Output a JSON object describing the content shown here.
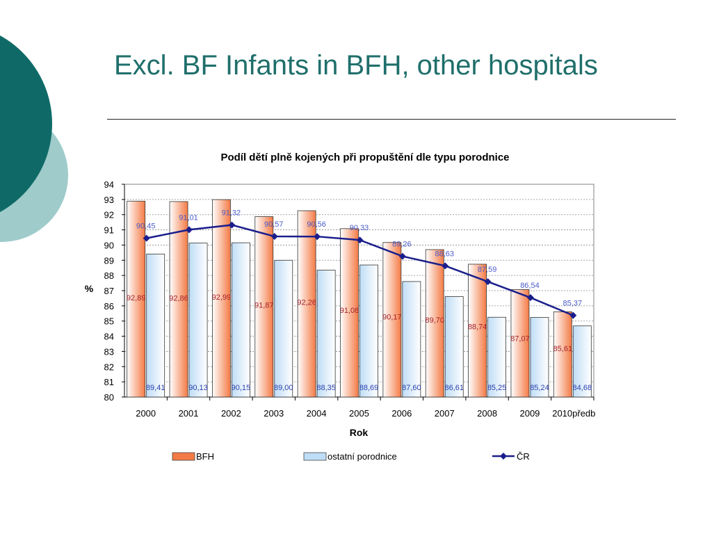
{
  "slide": {
    "title": "Excl. BF Infants in BFH, other hospitals",
    "accent_color": "#1F6F6B",
    "decor_dark": "#0F6A67",
    "decor_light": "#9FCBCB"
  },
  "chart_data": {
    "type": "bar",
    "title": "Podíl dětí plně kojených při propuštění dle typu porodnice",
    "xlabel": "Rok",
    "ylabel": "%",
    "ylim": [
      80,
      94
    ],
    "yticks": [
      80,
      81,
      82,
      83,
      84,
      85,
      86,
      87,
      88,
      89,
      90,
      91,
      92,
      93,
      94
    ],
    "grid": true,
    "legend_position": "bottom",
    "categories": [
      "2000",
      "2001",
      "2002",
      "2003",
      "2004",
      "2005",
      "2006",
      "2007",
      "2008",
      "2009",
      "2010předb"
    ],
    "series": [
      {
        "name": "BFH",
        "type": "bar",
        "color": "#F47A45",
        "values": [
          92.89,
          92.86,
          92.99,
          91.87,
          92.26,
          91.08,
          90.17,
          89.7,
          88.74,
          87.07,
          85.61
        ],
        "labels": [
          "92,89",
          "92,86",
          "92,99",
          "91,87",
          "92,26",
          "91,08",
          "90,17",
          "89,70",
          "88,74",
          "87,07",
          "85,61"
        ]
      },
      {
        "name": "ostatní porodnice",
        "type": "bar",
        "color": "#BFDDF6",
        "values": [
          89.41,
          90.13,
          90.15,
          89.0,
          88.35,
          88.69,
          87.6,
          86.61,
          85.25,
          85.24,
          84.68
        ],
        "labels": [
          "89,41",
          "90,13",
          "90,15",
          "89,00",
          "88,35",
          "88,69",
          "87,60",
          "86,61",
          "85,25",
          "85,24",
          "84,68"
        ]
      },
      {
        "name": "ČR",
        "type": "line",
        "color": "#1A1E8C",
        "values": [
          90.45,
          91.01,
          91.32,
          90.57,
          90.56,
          90.33,
          89.26,
          88.63,
          87.59,
          86.54,
          85.37
        ],
        "labels": [
          "90,45",
          "91,01",
          "91,32",
          "90,57",
          "90,56",
          "90,33",
          "89,26",
          "88,63",
          "87,59",
          "86,54",
          "85,37"
        ]
      }
    ]
  }
}
